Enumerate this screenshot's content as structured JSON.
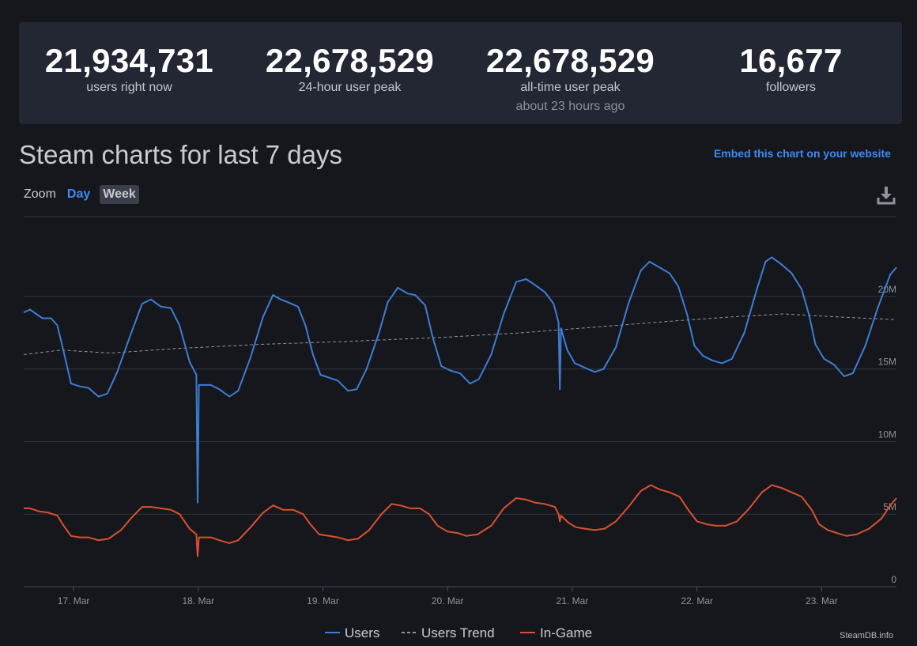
{
  "stats": [
    {
      "value": "21,934,731",
      "label": "users right now",
      "sub": ""
    },
    {
      "value": "22,678,529",
      "label": "24-hour user peak",
      "sub": ""
    },
    {
      "value": "22,678,529",
      "label": "all-time user peak",
      "sub": "about 23 hours ago"
    },
    {
      "value": "16,677",
      "label": "followers",
      "sub": ""
    }
  ],
  "section_title": "Steam charts for last 7 days",
  "embed_link": "Embed this chart on your website",
  "zoom": {
    "label": "Zoom",
    "day": "Day",
    "week": "Week"
  },
  "icons": {
    "download": "download-icon"
  },
  "watermark": "SteamDB.info",
  "colors": {
    "users": "#3b7ed4",
    "trend": "#8f939b",
    "ingame": "#d9512e",
    "accent": "#3b8cf2"
  },
  "chart_data": {
    "type": "line",
    "title": "",
    "xlabel": "",
    "ylabel": "",
    "ylim": [
      0,
      25.5
    ],
    "y_unit": "M",
    "y_ticks": [
      {
        "value": 0,
        "label": "0"
      },
      {
        "value": 5,
        "label": "5M"
      },
      {
        "value": 10,
        "label": "10M"
      },
      {
        "value": 15,
        "label": "15M"
      },
      {
        "value": 20,
        "label": "20M"
      }
    ],
    "x_range": [
      16.6,
      23.6
    ],
    "x_ticks": [
      {
        "value": 17,
        "label": "17. Mar"
      },
      {
        "value": 18,
        "label": "18. Mar"
      },
      {
        "value": 19,
        "label": "19. Mar"
      },
      {
        "value": 20,
        "label": "20. Mar"
      },
      {
        "value": 21,
        "label": "21. Mar"
      },
      {
        "value": 22,
        "label": "22. Mar"
      },
      {
        "value": 23,
        "label": "23. Mar"
      }
    ],
    "grid": true,
    "legend_position": "bottom-center",
    "series": [
      {
        "name": "Users",
        "style": "solid",
        "points": [
          [
            16.6,
            18.9
          ],
          [
            16.65,
            19.1
          ],
          [
            16.7,
            18.8
          ],
          [
            16.75,
            18.5
          ],
          [
            16.82,
            18.5
          ],
          [
            16.87,
            18.0
          ],
          [
            16.92,
            16.2
          ],
          [
            16.98,
            14.0
          ],
          [
            17.05,
            13.8
          ],
          [
            17.12,
            13.7
          ],
          [
            17.2,
            13.1
          ],
          [
            17.27,
            13.3
          ],
          [
            17.35,
            14.8
          ],
          [
            17.45,
            17.2
          ],
          [
            17.55,
            19.5
          ],
          [
            17.62,
            19.8
          ],
          [
            17.7,
            19.3
          ],
          [
            17.78,
            19.2
          ],
          [
            17.85,
            18.0
          ],
          [
            17.93,
            15.5
          ],
          [
            17.985,
            14.6
          ],
          [
            17.995,
            5.8
          ],
          [
            18.005,
            13.9
          ],
          [
            18.1,
            13.9
          ],
          [
            18.17,
            13.6
          ],
          [
            18.25,
            13.1
          ],
          [
            18.32,
            13.5
          ],
          [
            18.42,
            15.8
          ],
          [
            18.52,
            18.6
          ],
          [
            18.6,
            20.1
          ],
          [
            18.66,
            19.8
          ],
          [
            18.72,
            19.6
          ],
          [
            18.8,
            19.3
          ],
          [
            18.86,
            18.0
          ],
          [
            18.92,
            16.0
          ],
          [
            18.98,
            14.6
          ],
          [
            19.05,
            14.4
          ],
          [
            19.12,
            14.2
          ],
          [
            19.2,
            13.5
          ],
          [
            19.27,
            13.6
          ],
          [
            19.35,
            15.0
          ],
          [
            19.45,
            17.5
          ],
          [
            19.52,
            19.6
          ],
          [
            19.6,
            20.6
          ],
          [
            19.68,
            20.2
          ],
          [
            19.74,
            20.1
          ],
          [
            19.82,
            19.4
          ],
          [
            19.88,
            17.2
          ],
          [
            19.95,
            15.2
          ],
          [
            20.02,
            14.9
          ],
          [
            20.1,
            14.7
          ],
          [
            20.18,
            14.0
          ],
          [
            20.25,
            14.3
          ],
          [
            20.35,
            16.0
          ],
          [
            20.45,
            18.8
          ],
          [
            20.55,
            21.0
          ],
          [
            20.63,
            21.2
          ],
          [
            20.7,
            20.8
          ],
          [
            20.78,
            20.3
          ],
          [
            20.85,
            19.5
          ],
          [
            20.89,
            18.2
          ],
          [
            20.9,
            13.6
          ],
          [
            20.91,
            17.8
          ],
          [
            20.96,
            16.3
          ],
          [
            21.02,
            15.4
          ],
          [
            21.1,
            15.1
          ],
          [
            21.18,
            14.8
          ],
          [
            21.25,
            15.0
          ],
          [
            21.35,
            16.5
          ],
          [
            21.45,
            19.5
          ],
          [
            21.55,
            21.8
          ],
          [
            21.62,
            22.4
          ],
          [
            21.7,
            22.0
          ],
          [
            21.78,
            21.6
          ],
          [
            21.85,
            20.7
          ],
          [
            21.92,
            18.8
          ],
          [
            21.98,
            16.6
          ],
          [
            22.05,
            15.9
          ],
          [
            22.12,
            15.6
          ],
          [
            22.2,
            15.4
          ],
          [
            22.28,
            15.7
          ],
          [
            22.38,
            17.5
          ],
          [
            22.48,
            20.5
          ],
          [
            22.55,
            22.4
          ],
          [
            22.6,
            22.7
          ],
          [
            22.68,
            22.2
          ],
          [
            22.76,
            21.6
          ],
          [
            22.84,
            20.5
          ],
          [
            22.9,
            18.7
          ],
          [
            22.95,
            16.7
          ],
          [
            23.02,
            15.7
          ],
          [
            23.1,
            15.3
          ],
          [
            23.18,
            14.5
          ],
          [
            23.25,
            14.7
          ],
          [
            23.35,
            16.6
          ],
          [
            23.45,
            19.2
          ],
          [
            23.55,
            21.5
          ],
          [
            23.6,
            22.0
          ]
        ]
      },
      {
        "name": "Users Trend",
        "style": "dashed",
        "points": [
          [
            16.6,
            16.0
          ],
          [
            16.9,
            16.3
          ],
          [
            17.3,
            16.1
          ],
          [
            17.8,
            16.4
          ],
          [
            18.5,
            16.7
          ],
          [
            19.2,
            16.9
          ],
          [
            20.0,
            17.2
          ],
          [
            20.6,
            17.5
          ],
          [
            21.2,
            17.9
          ],
          [
            21.8,
            18.3
          ],
          [
            22.3,
            18.6
          ],
          [
            22.7,
            18.8
          ],
          [
            23.1,
            18.6
          ],
          [
            23.6,
            18.4
          ]
        ]
      },
      {
        "name": "In-Game",
        "style": "solid",
        "points": [
          [
            16.6,
            5.4
          ],
          [
            16.65,
            5.4
          ],
          [
            16.72,
            5.2
          ],
          [
            16.8,
            5.1
          ],
          [
            16.87,
            4.9
          ],
          [
            16.92,
            4.2
          ],
          [
            16.98,
            3.5
          ],
          [
            17.05,
            3.4
          ],
          [
            17.12,
            3.4
          ],
          [
            17.2,
            3.2
          ],
          [
            17.28,
            3.3
          ],
          [
            17.38,
            3.9
          ],
          [
            17.47,
            4.8
          ],
          [
            17.55,
            5.5
          ],
          [
            17.62,
            5.5
          ],
          [
            17.7,
            5.4
          ],
          [
            17.78,
            5.3
          ],
          [
            17.85,
            5.0
          ],
          [
            17.93,
            4.0
          ],
          [
            17.985,
            3.6
          ],
          [
            17.995,
            2.1
          ],
          [
            18.005,
            3.4
          ],
          [
            18.1,
            3.4
          ],
          [
            18.17,
            3.2
          ],
          [
            18.25,
            3.0
          ],
          [
            18.32,
            3.2
          ],
          [
            18.42,
            4.1
          ],
          [
            18.52,
            5.1
          ],
          [
            18.6,
            5.6
          ],
          [
            18.68,
            5.3
          ],
          [
            18.76,
            5.3
          ],
          [
            18.84,
            5.0
          ],
          [
            18.9,
            4.3
          ],
          [
            18.97,
            3.6
          ],
          [
            19.05,
            3.5
          ],
          [
            19.12,
            3.4
          ],
          [
            19.2,
            3.2
          ],
          [
            19.28,
            3.3
          ],
          [
            19.37,
            3.9
          ],
          [
            19.47,
            5.0
          ],
          [
            19.55,
            5.7
          ],
          [
            19.62,
            5.6
          ],
          [
            19.7,
            5.4
          ],
          [
            19.78,
            5.4
          ],
          [
            19.85,
            5.0
          ],
          [
            19.92,
            4.2
          ],
          [
            20.0,
            3.8
          ],
          [
            20.08,
            3.7
          ],
          [
            20.15,
            3.5
          ],
          [
            20.24,
            3.6
          ],
          [
            20.35,
            4.2
          ],
          [
            20.45,
            5.4
          ],
          [
            20.55,
            6.1
          ],
          [
            20.63,
            6.0
          ],
          [
            20.7,
            5.8
          ],
          [
            20.78,
            5.7
          ],
          [
            20.86,
            5.5
          ],
          [
            20.89,
            5.0
          ],
          [
            20.9,
            4.5
          ],
          [
            20.91,
            4.9
          ],
          [
            20.97,
            4.4
          ],
          [
            21.03,
            4.1
          ],
          [
            21.1,
            4.0
          ],
          [
            21.18,
            3.9
          ],
          [
            21.26,
            4.0
          ],
          [
            21.35,
            4.5
          ],
          [
            21.45,
            5.5
          ],
          [
            21.55,
            6.6
          ],
          [
            21.63,
            7.0
          ],
          [
            21.7,
            6.7
          ],
          [
            21.78,
            6.5
          ],
          [
            21.86,
            6.2
          ],
          [
            21.93,
            5.3
          ],
          [
            22.0,
            4.5
          ],
          [
            22.08,
            4.3
          ],
          [
            22.15,
            4.2
          ],
          [
            22.23,
            4.2
          ],
          [
            22.32,
            4.5
          ],
          [
            22.42,
            5.4
          ],
          [
            22.52,
            6.5
          ],
          [
            22.6,
            7.0
          ],
          [
            22.68,
            6.8
          ],
          [
            22.76,
            6.5
          ],
          [
            22.84,
            6.2
          ],
          [
            22.92,
            5.3
          ],
          [
            22.98,
            4.3
          ],
          [
            23.05,
            3.9
          ],
          [
            23.12,
            3.7
          ],
          [
            23.2,
            3.5
          ],
          [
            23.28,
            3.6
          ],
          [
            23.38,
            4.0
          ],
          [
            23.48,
            4.7
          ],
          [
            23.55,
            5.6
          ],
          [
            23.6,
            6.1
          ]
        ]
      }
    ]
  }
}
